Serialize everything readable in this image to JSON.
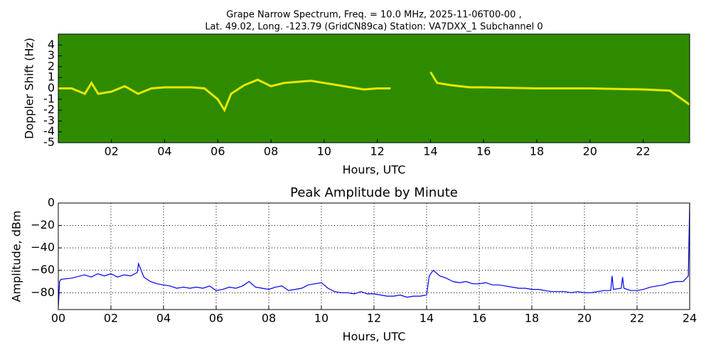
{
  "chart_data": [
    {
      "type": "line",
      "title_lines": [
        "Grape Narrow Spectrum, Freq. = 10.0 MHz, 2025-11-06T00-00 ,",
        "Lat.  49.02, Long. -123.79 (GridCN89ca) Station: VA7DXX_1 Subchannel 0"
      ],
      "xlabel": "Hours, UTC",
      "ylabel": "Doppler Shift (Hz)",
      "background": "#2e8b00",
      "x": [
        0,
        0.5,
        1.0,
        1.25,
        1.5,
        2.0,
        2.5,
        3.0,
        3.5,
        4.0,
        5.0,
        5.5,
        6.0,
        6.25,
        6.5,
        7.0,
        7.5,
        8.0,
        8.5,
        9.0,
        9.5,
        10.0,
        10.5,
        11.0,
        11.5,
        12.0,
        12.5,
        13.0,
        14.0,
        14.25,
        14.75,
        15.5,
        16.0,
        18.0,
        20.0,
        22.0,
        23.0,
        23.75
      ],
      "series": [
        {
          "name": "Doppler trace",
          "color": "#e8e800",
          "values": [
            0,
            0,
            -0.5,
            0.5,
            -0.5,
            -0.3,
            0.2,
            -0.5,
            0,
            0.1,
            0.1,
            0,
            -1,
            -2,
            -0.5,
            0.3,
            0.8,
            0.2,
            0.5,
            0.6,
            0.7,
            0.5,
            0.3,
            0.1,
            -0.1,
            0,
            0,
            null,
            1.5,
            0.5,
            0.3,
            0.1,
            0.1,
            0,
            0,
            -0.1,
            -0.2,
            -1.5
          ]
        }
      ],
      "xlim": [
        0,
        23.75
      ],
      "ylim": [
        -5,
        5
      ],
      "xticks": [
        {
          "value": 2,
          "label": "02"
        },
        {
          "value": 4,
          "label": "04"
        },
        {
          "value": 6,
          "label": "06"
        },
        {
          "value": 8,
          "label": "08"
        },
        10,
        12,
        14,
        16,
        18,
        20,
        22
      ],
      "yticks": [
        4,
        3,
        2,
        1,
        0,
        -1,
        -2,
        -3,
        -4,
        -5
      ],
      "grid": false
    },
    {
      "type": "line",
      "title": "Peak Amplitude by Minute",
      "xlabel": "Hours, UTC",
      "ylabel": "Amplitude, dBm",
      "background": "#ffffff",
      "x": [
        0,
        0.05,
        0.1,
        0.5,
        1.0,
        1.25,
        1.5,
        1.75,
        2.0,
        2.25,
        2.5,
        2.75,
        3.0,
        3.05,
        3.25,
        3.5,
        3.75,
        4.0,
        4.25,
        4.5,
        4.75,
        5.0,
        5.25,
        5.5,
        5.75,
        6.0,
        6.25,
        6.5,
        6.75,
        7.0,
        7.25,
        7.5,
        7.75,
        8.0,
        8.25,
        8.5,
        8.75,
        9.0,
        9.25,
        9.5,
        9.75,
        10.0,
        10.25,
        10.5,
        10.75,
        11.0,
        11.25,
        11.5,
        11.75,
        12.0,
        12.25,
        12.5,
        12.75,
        13.0,
        13.25,
        13.5,
        13.75,
        14.0,
        14.1,
        14.25,
        14.5,
        14.75,
        15.0,
        15.25,
        15.5,
        15.75,
        16.0,
        16.25,
        16.5,
        16.75,
        17.0,
        17.25,
        17.5,
        17.75,
        18.0,
        18.25,
        18.5,
        18.75,
        19.0,
        19.25,
        19.5,
        19.75,
        20.0,
        20.25,
        20.5,
        20.75,
        21.0,
        21.05,
        21.1,
        21.4,
        21.45,
        21.5,
        21.75,
        22.0,
        22.25,
        22.5,
        22.75,
        23.0,
        23.25,
        23.5,
        23.75,
        23.95,
        24
      ],
      "series": [
        {
          "name": "Peak amplitude",
          "color": "#0000ee",
          "values": [
            -93,
            -70,
            -68,
            -67,
            -64,
            -66,
            -63,
            -65,
            -63,
            -66,
            -64,
            -65,
            -62,
            -54,
            -66,
            -70,
            -72,
            -73,
            -74,
            -76,
            -75,
            -76,
            -75,
            -76,
            -74,
            -78,
            -77,
            -75,
            -76,
            -74,
            -70,
            -75,
            -76,
            -77,
            -75,
            -74,
            -78,
            -77,
            -76,
            -73,
            -72,
            -71,
            -76,
            -79,
            -80,
            -80,
            -81,
            -79,
            -81,
            -81,
            -82,
            -83,
            -83,
            -82,
            -84,
            -83,
            -83,
            -82,
            -65,
            -60,
            -65,
            -67,
            -70,
            -71,
            -70,
            -72,
            -72,
            -71,
            -73,
            -73,
            -74,
            -75,
            -76,
            -76,
            -77,
            -77,
            -78,
            -79,
            -79,
            -79,
            -80,
            -79,
            -80,
            -80,
            -79,
            -78,
            -78,
            -65,
            -77,
            -76,
            -66,
            -76,
            -78,
            -78,
            -77,
            -75,
            -74,
            -73,
            -71,
            -70,
            -70,
            -65,
            0
          ]
        }
      ],
      "xlim": [
        0,
        24
      ],
      "ylim": [
        -95,
        0
      ],
      "xticks": [
        {
          "value": 0,
          "label": "00"
        },
        {
          "value": 2,
          "label": "02"
        },
        {
          "value": 4,
          "label": "04"
        },
        {
          "value": 6,
          "label": "06"
        },
        {
          "value": 8,
          "label": "08"
        },
        10,
        12,
        14,
        16,
        18,
        20,
        22,
        24
      ],
      "yticks": [
        0,
        {
          "value": -20,
          "label": "−20"
        },
        {
          "value": -40,
          "label": "−40"
        },
        {
          "value": -60,
          "label": "−60"
        },
        {
          "value": -80,
          "label": "−80"
        }
      ],
      "grid": true
    }
  ]
}
